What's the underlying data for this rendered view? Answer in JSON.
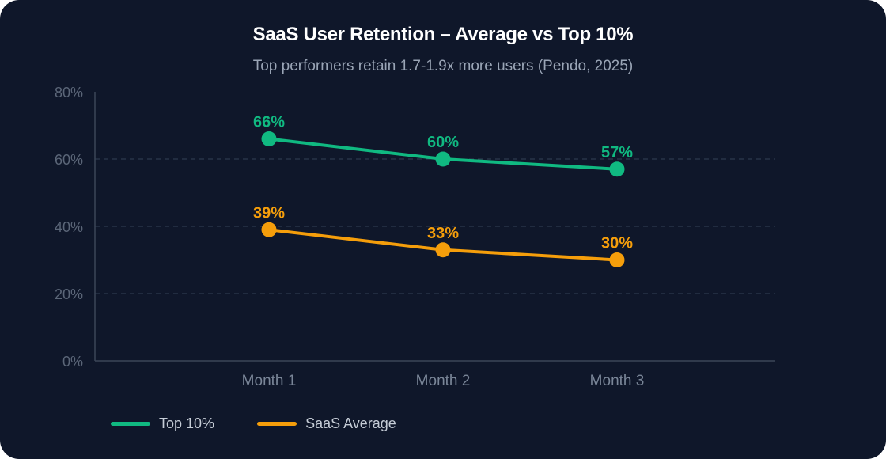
{
  "chart_data": {
    "type": "line",
    "title": "SaaS User Retention – Average vs Top 10%",
    "subtitle": "Top performers retain 1.7-1.9x more users (Pendo, 2025)",
    "categories": [
      "Month 1",
      "Month 2",
      "Month 3"
    ],
    "ylim": [
      0,
      80
    ],
    "yticks": [
      0,
      20,
      40,
      60,
      80
    ],
    "ytick_labels": [
      "0%",
      "20%",
      "40%",
      "60%",
      "80%"
    ],
    "grid": true,
    "legend_position": "bottom-left",
    "series": [
      {
        "name": "Top 10%",
        "color": "#10b981",
        "values": [
          66,
          60,
          57
        ],
        "labels": [
          "66%",
          "60%",
          "57%"
        ]
      },
      {
        "name": "SaaS Average",
        "color": "#f59e0b",
        "values": [
          39,
          33,
          30
        ],
        "labels": [
          "39%",
          "33%",
          "30%"
        ]
      }
    ]
  }
}
